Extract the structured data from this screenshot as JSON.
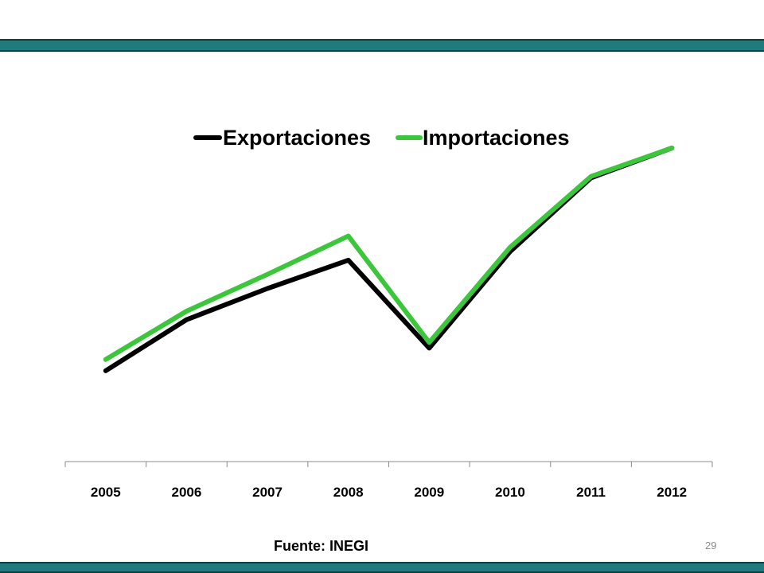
{
  "slide": {
    "source": "Fuente: INEGI",
    "page_number": "29",
    "band_color": "#1f7b7e"
  },
  "chart_data": {
    "type": "line",
    "title": "",
    "xlabel": "",
    "ylabel": "",
    "categories": [
      "2005",
      "2006",
      "2007",
      "2008",
      "2009",
      "2010",
      "2011",
      "2012"
    ],
    "series": [
      {
        "name": "Exportaciones",
        "color": "#000000",
        "values": [
          214,
          250,
          272,
          292,
          230,
          298,
          350,
          371
        ]
      },
      {
        "name": "Importaciones",
        "color": "#3cc63c",
        "values": [
          222,
          256,
          282,
          309,
          234,
          301,
          351,
          371
        ]
      }
    ],
    "ylim": [
      150,
      380
    ],
    "y_axis_visible": false,
    "grid": false,
    "legend": "top"
  }
}
